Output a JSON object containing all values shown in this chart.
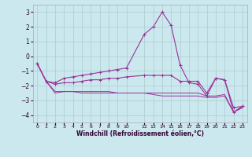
{
  "xlabel": "Windchill (Refroidissement éolien,°C)",
  "background_color": "#cbe8ee",
  "grid_color": "#aacccc",
  "line_color": "#993399",
  "hours": [
    0,
    1,
    2,
    3,
    4,
    5,
    6,
    7,
    8,
    9,
    10,
    12,
    13,
    14,
    15,
    16,
    17,
    18,
    19,
    20,
    21,
    22,
    23
  ],
  "line1": [
    -0.5,
    -1.7,
    -1.8,
    -1.5,
    -1.4,
    -1.3,
    -1.2,
    -1.1,
    -1.0,
    -0.9,
    -0.8,
    1.5,
    2.0,
    3.0,
    2.1,
    -0.6,
    -1.8,
    -1.9,
    -2.7,
    -1.5,
    -1.6,
    -3.8,
    -3.4
  ],
  "line2": [
    -0.5,
    -1.7,
    -1.9,
    -1.8,
    -1.8,
    -1.7,
    -1.6,
    -1.6,
    -1.5,
    -1.5,
    -1.4,
    -1.3,
    -1.3,
    -1.3,
    -1.3,
    -1.7,
    -1.7,
    -1.7,
    -2.5,
    -1.5,
    -1.6,
    -3.5,
    -3.4
  ],
  "line3": [
    -0.5,
    -1.7,
    -2.4,
    -2.4,
    -2.4,
    -2.4,
    -2.4,
    -2.4,
    -2.4,
    -2.5,
    -2.5,
    -2.5,
    -2.5,
    -2.5,
    -2.5,
    -2.5,
    -2.5,
    -2.5,
    -2.7,
    -2.7,
    -2.6,
    -3.8,
    -3.5
  ],
  "line4": [
    -0.5,
    -1.7,
    -2.5,
    -2.4,
    -2.4,
    -2.5,
    -2.5,
    -2.5,
    -2.5,
    -2.5,
    -2.5,
    -2.5,
    -2.6,
    -2.7,
    -2.7,
    -2.7,
    -2.7,
    -2.7,
    -2.8,
    -2.8,
    -2.7,
    -3.8,
    -3.4
  ],
  "ylim": [
    -4.5,
    3.5
  ],
  "yticks": [
    -4,
    -3,
    -2,
    -1,
    0,
    1,
    2,
    3
  ],
  "xticks": [
    0,
    1,
    2,
    3,
    4,
    5,
    6,
    7,
    8,
    9,
    10,
    12,
    13,
    14,
    15,
    16,
    17,
    18,
    19,
    20,
    21,
    22,
    23
  ],
  "xlim": [
    -0.5,
    23.5
  ],
  "figsize": [
    3.2,
    2.0
  ],
  "dpi": 100
}
